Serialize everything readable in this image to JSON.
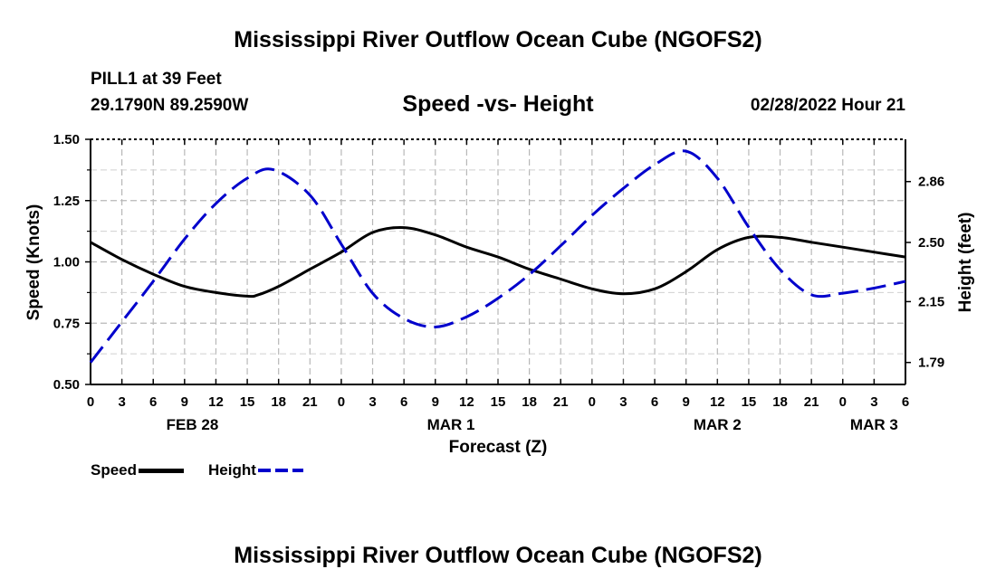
{
  "header": {
    "title": "Mississippi River Outflow Ocean Cube (NGOFS2)",
    "station": "PILL1 at 39 Feet",
    "coords": "29.1790N  89.2590W",
    "subtitle": "Speed -vs- Height",
    "datetime": "02/28/2022 Hour 21",
    "bottom_title": "Mississippi River Outflow Ocean Cube (NGOFS2)"
  },
  "legend": {
    "speed_label": "Speed",
    "height_label": "Height",
    "speed_color": "#000000",
    "height_color": "#0000cc"
  },
  "chart_data": {
    "type": "line",
    "title": "Speed -vs- Height",
    "xlabel": "Forecast (Z)",
    "ylabel": "Speed (Knots)",
    "y2label": "Height (feet)",
    "xlim": [
      0,
      78
    ],
    "ylim": [
      0.5,
      1.5
    ],
    "y2lim": [
      1.66,
      3.11
    ],
    "x_tick_labels": [
      "0",
      "3",
      "6",
      "9",
      "12",
      "15",
      "18",
      "21",
      "0",
      "3",
      "6",
      "9",
      "12",
      "15",
      "18",
      "21",
      "0",
      "3",
      "6",
      "9",
      "12",
      "15",
      "18",
      "21",
      "0",
      "3",
      "6"
    ],
    "y_ticks": [
      "0.50",
      "0.75",
      "1.00",
      "1.25",
      "1.50"
    ],
    "y2_ticks": [
      "1.79",
      "2.15",
      "2.50",
      "2.86"
    ],
    "day_labels": [
      {
        "label": "FEB 28",
        "x": 9.75
      },
      {
        "label": "MAR 1",
        "x": 34.5
      },
      {
        "label": "MAR 2",
        "x": 60
      },
      {
        "label": "MAR 3",
        "x": 75
      }
    ],
    "grid": true,
    "series": [
      {
        "name": "Speed",
        "axis": "left",
        "style": "solid",
        "x": [
          0,
          3,
          6,
          9,
          12,
          15,
          16,
          18,
          21,
          24,
          27,
          30,
          33,
          36,
          39,
          42,
          45,
          48,
          51,
          54,
          57,
          60,
          63,
          66,
          69,
          72,
          75,
          78
        ],
        "y": [
          1.08,
          1.01,
          0.95,
          0.9,
          0.875,
          0.86,
          0.865,
          0.9,
          0.97,
          1.04,
          1.12,
          1.14,
          1.11,
          1.06,
          1.02,
          0.97,
          0.93,
          0.89,
          0.87,
          0.89,
          0.96,
          1.05,
          1.1,
          1.1,
          1.08,
          1.06,
          1.04,
          1.02
        ]
      },
      {
        "name": "Height",
        "axis": "right",
        "style": "dashed",
        "x": [
          0,
          3,
          6,
          9,
          12,
          15,
          17.5,
          21,
          24,
          27,
          30,
          33,
          36,
          39,
          42,
          45,
          48,
          51,
          54,
          57,
          60,
          63,
          66,
          69,
          72,
          75,
          78
        ],
        "y": [
          1.79,
          2.03,
          2.27,
          2.52,
          2.73,
          2.88,
          2.93,
          2.78,
          2.49,
          2.2,
          2.05,
          2.0,
          2.06,
          2.17,
          2.31,
          2.48,
          2.66,
          2.82,
          2.96,
          3.04,
          2.88,
          2.59,
          2.34,
          2.19,
          2.2,
          2.23,
          2.27
        ]
      }
    ]
  }
}
